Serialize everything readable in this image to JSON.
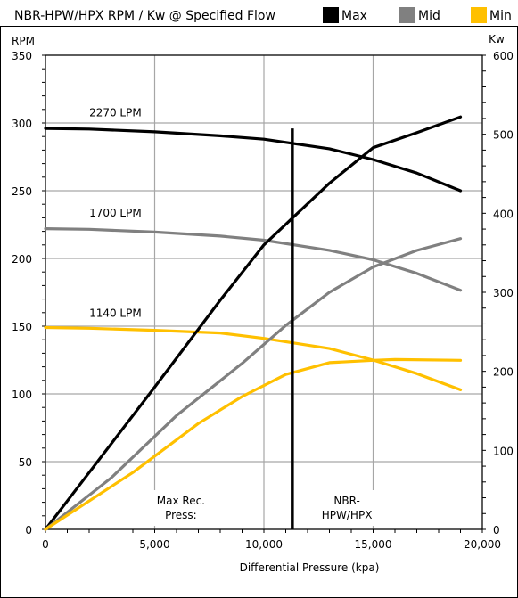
{
  "chart_data": {
    "type": "line",
    "title": "NBR-HPW/HPX RPM / Kw @ Specified Flow",
    "xlabel": "Differential Pressure (kpa)",
    "ylabel_left": "RPM",
    "ylabel_right": "Kw",
    "xlim": [
      0,
      20000
    ],
    "ylim_left": [
      0,
      350
    ],
    "ylim_right": [
      0,
      600
    ],
    "x_ticks": [
      "0",
      "5,000",
      "10,000",
      "15,000",
      "20,000"
    ],
    "y_left_ticks": [
      "0",
      "50",
      "100",
      "150",
      "200",
      "250",
      "300",
      "350"
    ],
    "y_right_ticks": [
      "0",
      "100",
      "200",
      "300",
      "400",
      "500",
      "600"
    ],
    "grid": true,
    "legend": {
      "position": "top-right",
      "items": [
        {
          "label": "Max",
          "color": "#000000"
        },
        {
          "label": "Mid",
          "color": "#808080"
        },
        {
          "label": "Min",
          "color": "#FFC000"
        }
      ]
    },
    "series": [
      {
        "name": "Max",
        "axis": "left",
        "color": "#000000",
        "points": [
          [
            0,
            296
          ],
          [
            2000,
            295.5
          ],
          [
            5000,
            293.5
          ],
          [
            8000,
            290.5
          ],
          [
            10000,
            288
          ],
          [
            13000,
            281
          ],
          [
            15000,
            273
          ],
          [
            17000,
            263
          ],
          [
            19000,
            250
          ]
        ]
      },
      {
        "name": "Mid",
        "axis": "left",
        "color": "#808080",
        "points": [
          [
            0,
            222
          ],
          [
            2000,
            221.5
          ],
          [
            5000,
            219.5
          ],
          [
            8000,
            216.5
          ],
          [
            10000,
            213.5
          ],
          [
            13000,
            206
          ],
          [
            15000,
            199
          ],
          [
            17000,
            189
          ],
          [
            19000,
            176.5
          ]
        ]
      },
      {
        "name": "Min",
        "axis": "left",
        "color": "#FFC000",
        "points": [
          [
            0,
            149
          ],
          [
            2000,
            148.5
          ],
          [
            5000,
            147
          ],
          [
            8000,
            145
          ],
          [
            10000,
            141
          ],
          [
            13000,
            133.5
          ],
          [
            15000,
            125
          ],
          [
            17000,
            115
          ],
          [
            19000,
            103
          ]
        ]
      },
      {
        "name": "Max",
        "axis": "right",
        "color": "#000000",
        "points": [
          [
            0,
            0
          ],
          [
            2000,
            72
          ],
          [
            5000,
            180
          ],
          [
            8000,
            290
          ],
          [
            10000,
            360
          ],
          [
            13000,
            438
          ],
          [
            15000,
            483
          ],
          [
            17000,
            502
          ],
          [
            19000,
            522
          ]
        ]
      },
      {
        "name": "Mid",
        "axis": "right",
        "color": "#808080",
        "points": [
          [
            0,
            0
          ],
          [
            3000,
            65
          ],
          [
            6000,
            144
          ],
          [
            9000,
            210
          ],
          [
            11000,
            258
          ],
          [
            13000,
            300
          ],
          [
            15000,
            332
          ],
          [
            17000,
            353
          ],
          [
            19000,
            368
          ]
        ]
      },
      {
        "name": "Min",
        "axis": "right",
        "color": "#FFC000",
        "points": [
          [
            0,
            0
          ],
          [
            4000,
            72
          ],
          [
            7000,
            134
          ],
          [
            9000,
            168
          ],
          [
            11000,
            196
          ],
          [
            13000,
            211
          ],
          [
            15000,
            214
          ],
          [
            16000,
            215
          ],
          [
            19000,
            214
          ]
        ]
      }
    ],
    "annotations": [
      {
        "label": "2270 LPM",
        "x": 3200,
        "y": 305
      },
      {
        "label": "1700 LPM",
        "x": 3200,
        "y": 231
      },
      {
        "label": "1140 LPM",
        "x": 3200,
        "y": 157
      }
    ],
    "vertical_marker": {
      "x": 11300,
      "y_top": 296
    },
    "marker_labels": [
      {
        "lines": [
          "Max Rec.",
          "Press:"
        ],
        "x": 6200
      },
      {
        "lines": [
          "NBR-",
          "HPW/HPX"
        ],
        "x": 13800
      }
    ]
  }
}
